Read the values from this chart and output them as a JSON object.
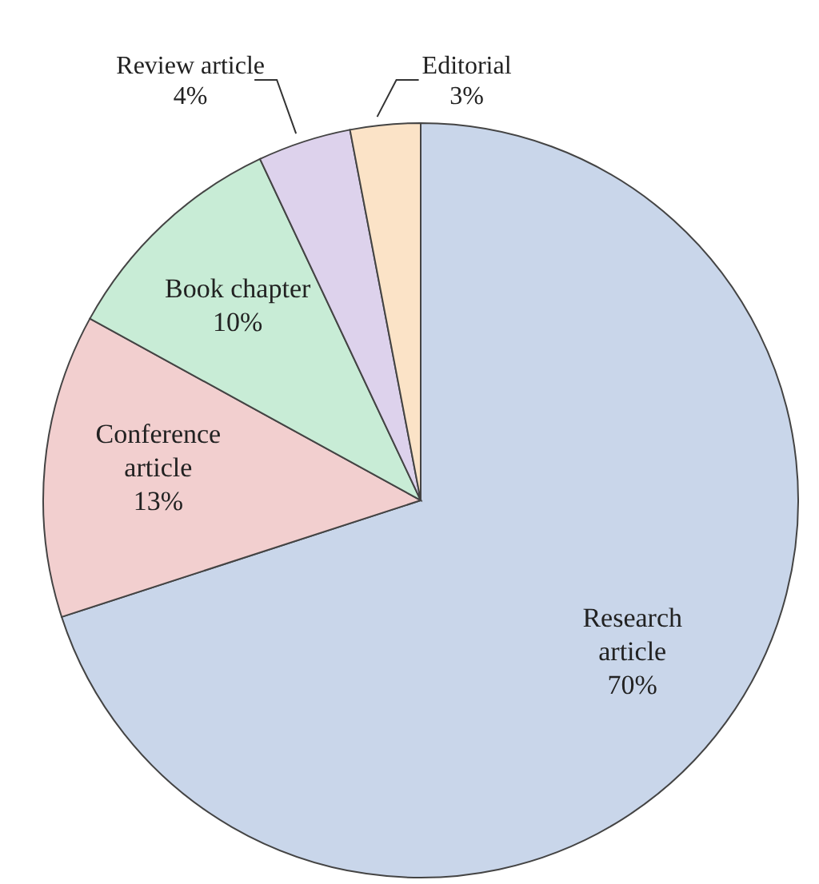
{
  "chart_data": {
    "type": "pie",
    "categories": [
      "Research article",
      "Conference article",
      "Book chapter",
      "Review article",
      "Editorial"
    ],
    "values": [
      70,
      13,
      10,
      4,
      3
    ],
    "value_labels": [
      "70%",
      "13%",
      "10%",
      "4%",
      "3%"
    ],
    "colors": [
      "#c9d6ea",
      "#f2cfcf",
      "#c8ecd6",
      "#ddd2ec",
      "#fbe3c7"
    ]
  }
}
